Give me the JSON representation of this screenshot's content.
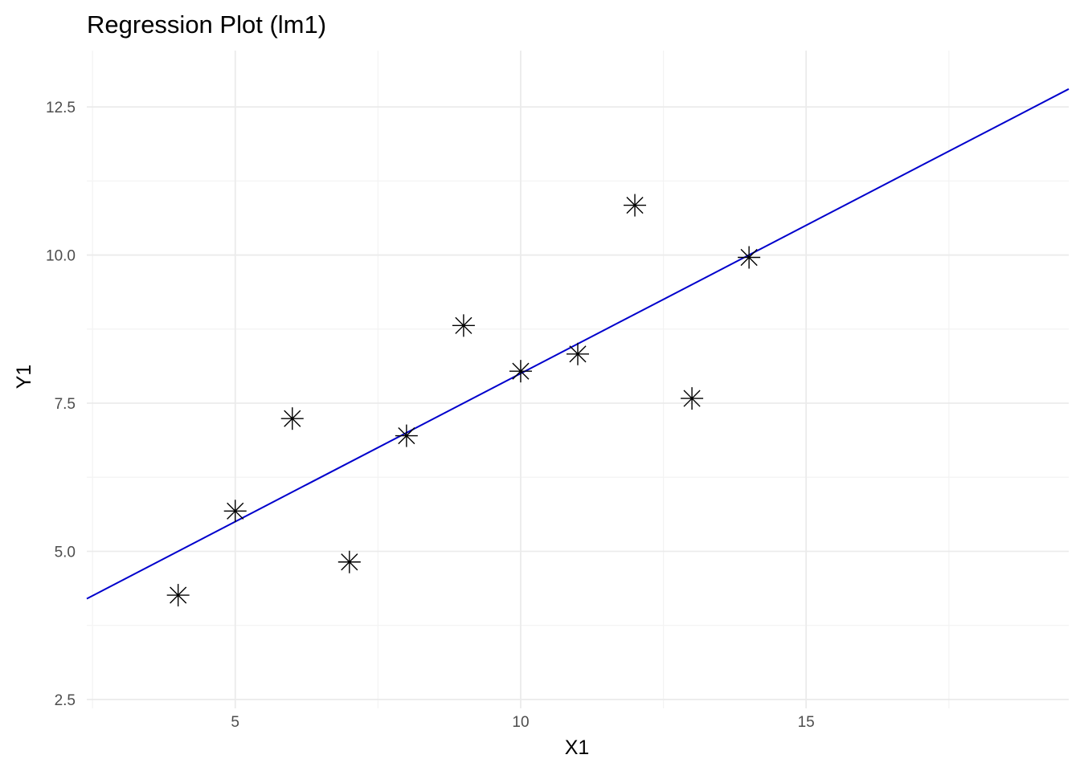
{
  "chart_data": {
    "type": "scatter",
    "title": "Regression Plot (lm1)",
    "xlabel": "X1",
    "ylabel": "Y1",
    "xlim": [
      2.4,
      19.6
    ],
    "ylim": [
      2.35,
      13.45
    ],
    "x_ticks": [
      5,
      10,
      15
    ],
    "x_tick_labels": [
      "5",
      "10",
      "15"
    ],
    "x_minor_ticks": [
      2.5,
      7.5,
      12.5,
      17.5
    ],
    "y_ticks": [
      2.5,
      5.0,
      7.5,
      10.0,
      12.5
    ],
    "y_tick_labels": [
      "2.5",
      "5.0",
      "7.5",
      "10.0",
      "12.5"
    ],
    "y_minor_ticks": [
      3.75,
      6.25,
      8.75,
      11.25
    ],
    "grid": true,
    "legend": "none",
    "point_shape": "asterisk",
    "point_color": "#000000",
    "series": [
      {
        "x": [
          10,
          8,
          13,
          9,
          11,
          14,
          6,
          4,
          12,
          7,
          5
        ],
        "y": [
          8.04,
          6.95,
          7.58,
          8.81,
          8.33,
          9.96,
          7.24,
          4.26,
          10.84,
          4.82,
          5.68
        ]
      }
    ],
    "regression_line": {
      "intercept": 3.0001,
      "slope": 0.5001,
      "color": "#0000cc"
    }
  }
}
